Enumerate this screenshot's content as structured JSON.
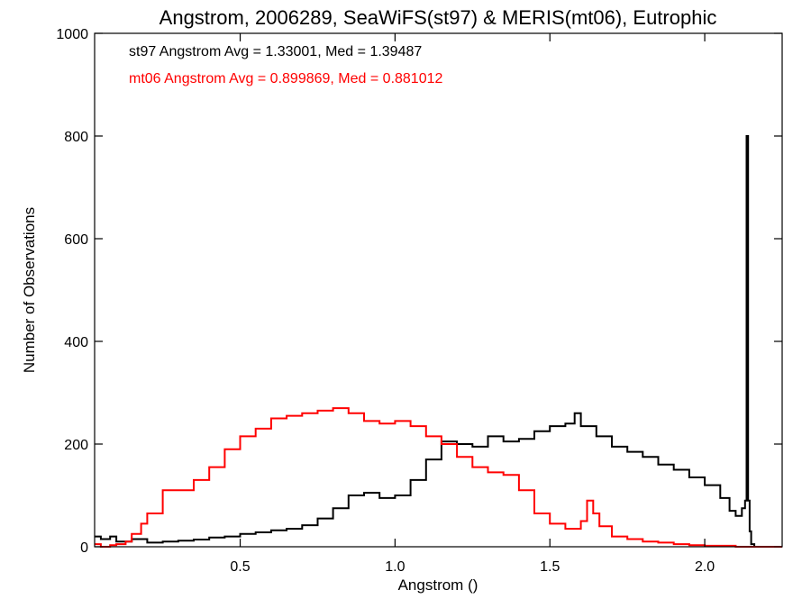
{
  "chart_data": {
    "type": "histogram",
    "title": "Angstrom, 2006289, SeaWiFS(st97) & MERIS(mt06), Eutrophic",
    "xlabel": "Angstrom ()",
    "ylabel": "Number of Observations",
    "xlim": [
      0.03,
      2.25
    ],
    "ylim": [
      0,
      1000
    ],
    "x_ticks": [
      {
        "value": 0.5,
        "label": "0.5"
      },
      {
        "value": 1.0,
        "label": "1.0"
      },
      {
        "value": 1.5,
        "label": "1.5"
      },
      {
        "value": 2.0,
        "label": "2.0"
      }
    ],
    "y_ticks": [
      {
        "value": 0,
        "label": "0"
      },
      {
        "value": 200,
        "label": "200"
      },
      {
        "value": 400,
        "label": "400"
      },
      {
        "value": 600,
        "label": "600"
      },
      {
        "value": 800,
        "label": "800"
      },
      {
        "value": 1000,
        "label": "1000"
      }
    ],
    "annotations": [
      {
        "text": "st97 Angstrom Avg = 1.33001, Med = 1.39487",
        "color": "#000000"
      },
      {
        "text": "mt06 Angstrom Avg = 0.899869, Med = 0.881012",
        "color": "#ff0000"
      }
    ],
    "series": [
      {
        "color": "#000000",
        "x": [
          0.03,
          0.05,
          0.08,
          0.1,
          0.15,
          0.2,
          0.25,
          0.3,
          0.35,
          0.4,
          0.45,
          0.5,
          0.55,
          0.6,
          0.65,
          0.7,
          0.75,
          0.8,
          0.85,
          0.9,
          0.95,
          1.0,
          1.05,
          1.1,
          1.15,
          1.2,
          1.25,
          1.3,
          1.35,
          1.4,
          1.45,
          1.5,
          1.55,
          1.58,
          1.6,
          1.65,
          1.7,
          1.75,
          1.8,
          1.85,
          1.9,
          1.95,
          2.0,
          2.05,
          2.08,
          2.1,
          2.12,
          2.13,
          2.135,
          2.14,
          2.145,
          2.15,
          2.16,
          2.2,
          2.25
        ],
        "y": [
          20,
          15,
          20,
          10,
          15,
          8,
          10,
          12,
          14,
          18,
          20,
          25,
          28,
          32,
          35,
          42,
          55,
          75,
          100,
          105,
          95,
          100,
          130,
          170,
          205,
          200,
          195,
          215,
          205,
          210,
          225,
          235,
          240,
          260,
          235,
          215,
          195,
          185,
          175,
          160,
          150,
          135,
          120,
          95,
          70,
          60,
          75,
          90,
          800,
          90,
          30,
          5,
          0,
          0,
          0
        ]
      },
      {
        "color": "#ff0000",
        "x": [
          0.03,
          0.05,
          0.08,
          0.1,
          0.13,
          0.15,
          0.18,
          0.2,
          0.25,
          0.3,
          0.35,
          0.4,
          0.45,
          0.5,
          0.55,
          0.6,
          0.65,
          0.7,
          0.75,
          0.8,
          0.85,
          0.9,
          0.95,
          1.0,
          1.05,
          1.1,
          1.15,
          1.2,
          1.25,
          1.3,
          1.35,
          1.4,
          1.45,
          1.5,
          1.55,
          1.6,
          1.62,
          1.64,
          1.66,
          1.7,
          1.75,
          1.8,
          1.85,
          1.9,
          1.95,
          2.0,
          2.05,
          2.1,
          2.15,
          2.2,
          2.25
        ],
        "y": [
          5,
          0,
          3,
          5,
          10,
          25,
          45,
          65,
          110,
          110,
          130,
          155,
          190,
          215,
          230,
          250,
          255,
          260,
          265,
          270,
          260,
          245,
          240,
          245,
          235,
          215,
          200,
          175,
          155,
          145,
          140,
          110,
          65,
          45,
          35,
          50,
          90,
          65,
          40,
          20,
          15,
          10,
          8,
          5,
          3,
          2,
          2,
          0,
          0,
          0,
          0
        ]
      }
    ]
  }
}
